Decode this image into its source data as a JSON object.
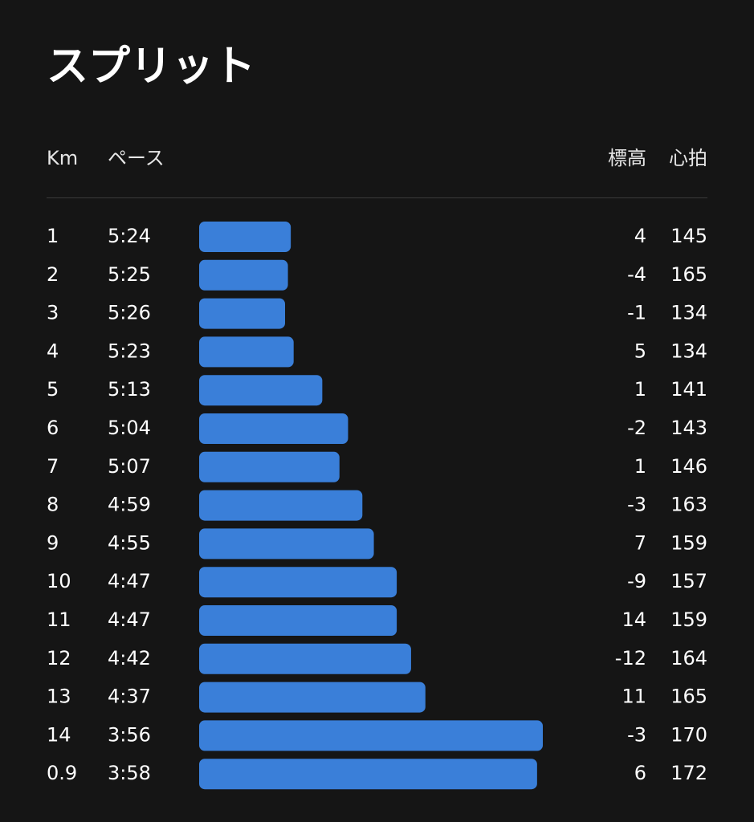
{
  "header": {
    "title": "スプリット"
  },
  "table": {
    "columns": [
      "Km",
      "ペース",
      "標高",
      "心拍"
    ],
    "rows": [
      {
        "km": 1,
        "pace": "5:24",
        "elevation": 4,
        "heart_rate": 145
      },
      {
        "km": 2,
        "pace": "5:25",
        "elevation": -4,
        "heart_rate": 165
      },
      {
        "km": 3,
        "pace": "5:26",
        "elevation": -1,
        "heart_rate": 134
      },
      {
        "km": 4,
        "pace": "5:23",
        "elevation": 5,
        "heart_rate": 134
      },
      {
        "km": 5,
        "pace": "5:13",
        "elevation": 1,
        "heart_rate": 141
      },
      {
        "km": 6,
        "pace": "5:04",
        "elevation": -2,
        "heart_rate": 143
      },
      {
        "km": 7,
        "pace": "5:07",
        "elevation": 1,
        "heart_rate": 146
      },
      {
        "km": 8,
        "pace": "4:59",
        "elevation": -3,
        "heart_rate": 163
      },
      {
        "km": 9,
        "pace": "4:55",
        "elevation": 7,
        "heart_rate": 159
      },
      {
        "km": 10,
        "pace": "4:47",
        "elevation": -9,
        "heart_rate": 157
      },
      {
        "km": 11,
        "pace": "4:47",
        "elevation": 14,
        "heart_rate": 159
      },
      {
        "km": 12,
        "pace": "4:42",
        "elevation": -12,
        "heart_rate": 164
      },
      {
        "km": 13,
        "pace": "4:37",
        "elevation": 11,
        "heart_rate": 165
      },
      {
        "km": 14,
        "pace": "3:56",
        "elevation": -3,
        "heart_rate": 170
      },
      {
        "km": 0.9,
        "pace": "3:58",
        "elevation": 6,
        "heart_rate": 172
      }
    ]
  }
}
